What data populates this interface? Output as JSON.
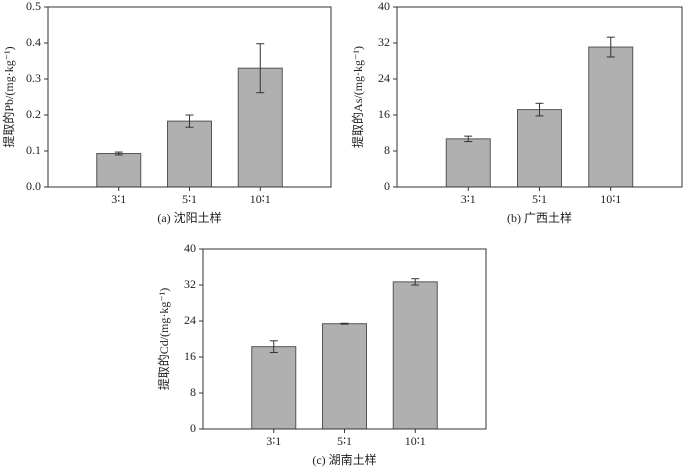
{
  "chart_data": [
    {
      "type": "bar",
      "caption": "(a) 沈阳土样",
      "ylabel": "提取的Pb/(mg·kg⁻¹)",
      "categories": [
        "3∶1",
        "5∶1",
        "10∶1"
      ],
      "values": [
        0.093,
        0.183,
        0.33
      ],
      "errors": [
        0.004,
        0.017,
        0.068
      ],
      "color": "#b0b0b0",
      "ylim": [
        0,
        0.5
      ],
      "yticks": [
        {
          "value": 0,
          "label": "0.0"
        },
        0.1,
        0.2,
        0.3,
        0.4,
        0.5
      ]
    },
    {
      "type": "bar",
      "caption": "(b) 广西土样",
      "ylabel": "提取的As/(mg·kg⁻¹)",
      "categories": [
        "3∶1",
        "5∶1",
        "10∶1"
      ],
      "values": [
        10.7,
        17.2,
        31.1
      ],
      "errors": [
        0.6,
        1.4,
        2.2
      ],
      "color": "#b0b0b0",
      "ylim": [
        0,
        40
      ],
      "yticks": [
        0,
        8,
        16,
        24,
        32,
        40
      ]
    },
    {
      "type": "bar",
      "caption": "(c) 湖南土样",
      "ylabel": "提取的Cd/(mg·kg⁻¹)",
      "categories": [
        "3∶1",
        "5∶1",
        "10∶1"
      ],
      "values": [
        18.3,
        23.4,
        32.7
      ],
      "errors": [
        1.3,
        0.1,
        0.7
      ],
      "color": "#b0b0b0",
      "ylim": [
        0,
        40
      ],
      "yticks": [
        0,
        8,
        16,
        24,
        32,
        40
      ]
    }
  ]
}
